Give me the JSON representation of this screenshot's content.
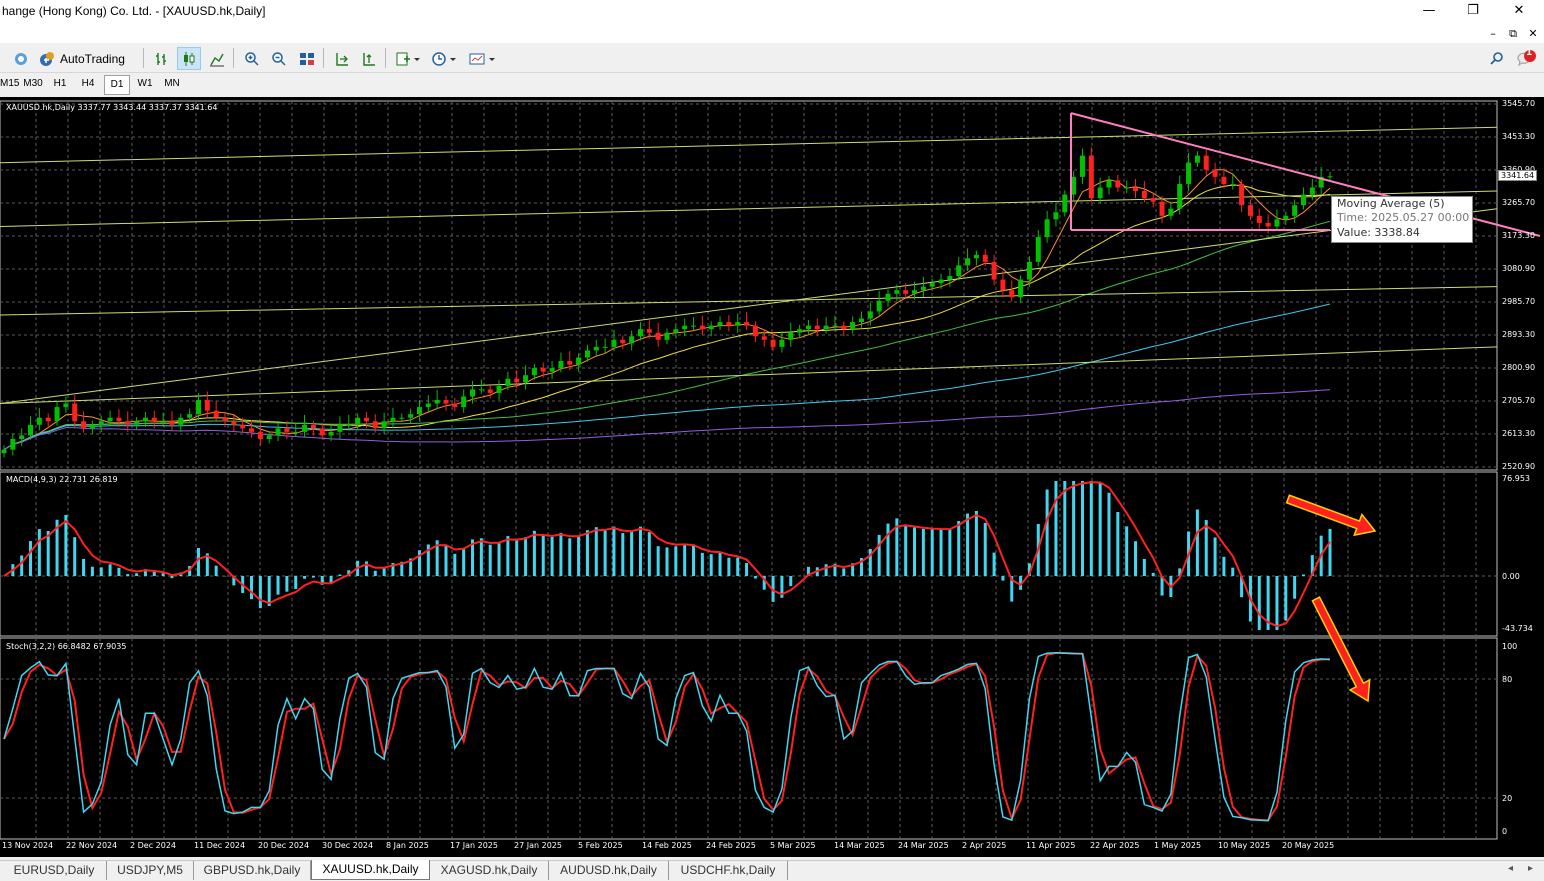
{
  "window": {
    "title": "hange (Hong Kong) Co. Ltd. - [XAUUSD.hk,Daily]",
    "min": "—",
    "max": "❐",
    "close": "✕"
  },
  "toolbar": {
    "autotrading": "AutoTrading"
  },
  "timeframes": [
    "M15",
    "M30",
    "H1",
    "H4",
    "D1",
    "W1",
    "MN"
  ],
  "active_timeframe": "D1",
  "notif": {
    "count": "1"
  },
  "main": {
    "header": "XAUUSD.hk,Daily  3337.77 3343.44 3337.37 3341.64",
    "current_price": "3341.64"
  },
  "tooltip": {
    "line1": "Moving Average (5)",
    "line2": "Time: 2025.05.27 00:00",
    "line3": "Value: 3338.84"
  },
  "price_axis": [
    "3545.70",
    "3453.30",
    "3360.90",
    "3265.70",
    "3173.30",
    "3080.90",
    "2985.70",
    "2893.30",
    "2800.90",
    "2705.70",
    "2613.30",
    "2520.90"
  ],
  "macd": {
    "header": "MACD(4,9,3) 22.731 26.819",
    "axis": [
      "76.953",
      "0.00",
      "-43.734"
    ]
  },
  "stoch": {
    "header": "Stoch(3,2,2) 66.8482 67.9035",
    "axis": [
      "100",
      "80",
      "20",
      "0"
    ]
  },
  "date_axis": [
    "13 Nov 2024",
    "22 Nov 2024",
    "2 Dec 2024",
    "11 Dec 2024",
    "20 Dec 2024",
    "30 Dec 2024",
    "8 Jan 2025",
    "17 Jan 2025",
    "27 Jan 2025",
    "5 Feb 2025",
    "14 Feb 2025",
    "24 Feb 2025",
    "5 Mar 2025",
    "14 Mar 2025",
    "24 Mar 2025",
    "2 Apr 2025",
    "11 Apr 2025",
    "22 Apr 2025",
    "1 May 2025",
    "10 May 2025",
    "20 May 2025"
  ],
  "tabs": [
    "EURUSD,Daily",
    "USDJPY,M5",
    "GBPUSD.hk,Daily",
    "XAUUSD.hk,Daily",
    "XAGUSD.hk,Daily",
    "AUDUSD.hk,Daily",
    "USDCHF.hk,Daily"
  ],
  "active_tab": "XAUUSD.hk,Daily",
  "colors": {
    "bull": "#00c000",
    "bear": "#ff2020",
    "macd_hist": "#40d8f0",
    "macd_signal": "#ff2020",
    "stoch_main": "#40d8f0",
    "stoch_signal": "#ff2020",
    "triangle": "#ff80c0",
    "arrow": "#ff2020"
  },
  "chart_data": {
    "type": "candlestick",
    "symbol": "XAUUSD.hk",
    "timeframe": "Daily",
    "last": {
      "open": 3337.77,
      "high": 3343.44,
      "low": 3337.37,
      "close": 3341.64
    },
    "ylim": [
      2520.9,
      3545.7
    ],
    "closes": [
      2570,
      2600,
      2610,
      2640,
      2660,
      2650,
      2690,
      2700,
      2650,
      2630,
      2640,
      2650,
      2660,
      2650,
      2640,
      2650,
      2660,
      2650,
      2650,
      2640,
      2660,
      2670,
      2710,
      2680,
      2660,
      2650,
      2640,
      2630,
      2620,
      2600,
      2610,
      2630,
      2620,
      2620,
      2640,
      2630,
      2610,
      2620,
      2640,
      2640,
      2660,
      2650,
      2630,
      2650,
      2660,
      2660,
      2670,
      2690,
      2700,
      2710,
      2700,
      2690,
      2720,
      2740,
      2740,
      2730,
      2750,
      2770,
      2760,
      2780,
      2800,
      2790,
      2800,
      2820,
      2810,
      2830,
      2850,
      2860,
      2860,
      2880,
      2870,
      2890,
      2910,
      2900,
      2880,
      2900,
      2910,
      2920,
      2920,
      2910,
      2920,
      2930,
      2920,
      2930,
      2920,
      2890,
      2880,
      2860,
      2880,
      2900,
      2910,
      2920,
      2910,
      2920,
      2920,
      2910,
      2930,
      2940,
      2960,
      2990,
      3010,
      3020,
      3010,
      3020,
      3030,
      3040,
      3050,
      3060,
      3090,
      3110,
      3120,
      3100,
      3050,
      3020,
      3000,
      3050,
      3100,
      3170,
      3220,
      3240,
      3290,
      3340,
      3400,
      3280,
      3310,
      3330,
      3310,
      3310,
      3300,
      3280,
      3270,
      3230,
      3250,
      3320,
      3380,
      3400,
      3360,
      3340,
      3320,
      3320,
      3260,
      3230,
      3210,
      3200,
      3220,
      3230,
      3260,
      3290,
      3310,
      3340,
      3341.64
    ],
    "ma_periods": [
      5,
      20,
      50,
      100,
      200
    ],
    "macd": {
      "fast": 4,
      "slow": 9,
      "signal": 3,
      "main": 22.731,
      "signal_value": 26.819,
      "ylim": [
        -43.734,
        76.953
      ]
    },
    "stoch": {
      "k": 3,
      "d": 2,
      "slowing": 2,
      "main": 66.8482,
      "signal": 67.9035,
      "ylim": [
        0,
        100
      ],
      "levels": [
        20,
        80
      ]
    },
    "trendlines": {
      "triangle_top": [
        3520,
        3200
      ],
      "triangle_bottom": 3200
    }
  }
}
